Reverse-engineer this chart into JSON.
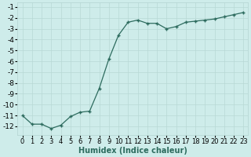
{
  "x": [
    0,
    1,
    2,
    3,
    4,
    5,
    6,
    7,
    8,
    9,
    10,
    11,
    12,
    13,
    14,
    15,
    16,
    17,
    18,
    19,
    20,
    21,
    22,
    23
  ],
  "y": [
    -11.0,
    -11.8,
    -11.8,
    -12.2,
    -11.9,
    -11.1,
    -10.7,
    -10.6,
    -8.5,
    -5.8,
    -3.6,
    -2.4,
    -2.2,
    -2.5,
    -2.5,
    -3.0,
    -2.8,
    -2.4,
    -2.3,
    -2.2,
    -2.1,
    -1.9,
    -1.7,
    -1.5
  ],
  "line_color": "#2d6b5e",
  "marker": "+",
  "marker_size": 3.5,
  "marker_lw": 1.0,
  "bg_color": "#ceecea",
  "grid_color": "#b8d8d5",
  "xlabel": "Humidex (Indice chaleur)",
  "xlabel_fontsize": 7,
  "tick_fontsize": 6,
  "ytick_fontsize": 6.5,
  "ylim_min": -12.8,
  "ylim_max": -0.6,
  "xlim_min": -0.5,
  "xlim_max": 23.5,
  "yticks": [
    -12,
    -11,
    -10,
    -9,
    -8,
    -7,
    -6,
    -5,
    -4,
    -3,
    -2,
    -1
  ],
  "xticks": [
    0,
    1,
    2,
    3,
    4,
    5,
    6,
    7,
    8,
    9,
    10,
    11,
    12,
    13,
    14,
    15,
    16,
    17,
    18,
    19,
    20,
    21,
    22,
    23
  ],
  "line_width": 0.9
}
